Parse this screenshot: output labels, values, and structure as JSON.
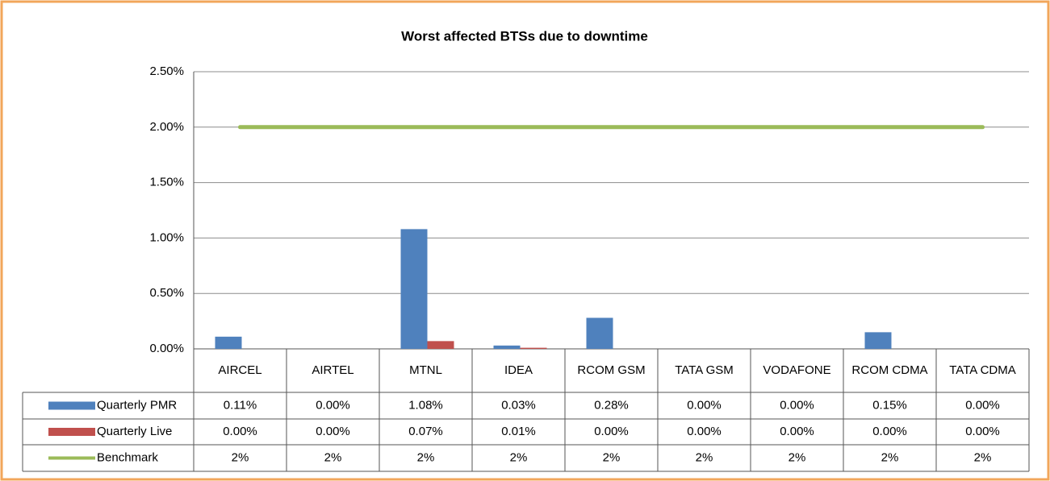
{
  "chart_data": {
    "type": "bar",
    "title": "Worst affected BTSs due to downtime",
    "categories": [
      "AIRCEL",
      "AIRTEL",
      "MTNL",
      "IDEA",
      "RCOM GSM",
      "TATA GSM",
      "VODAFONE",
      "RCOM CDMA",
      "TATA CDMA"
    ],
    "series": [
      {
        "name": "Quarterly PMR",
        "color": "#4f81bd",
        "values": [
          0.11,
          0,
          1.08,
          0.03,
          0.28,
          0,
          0,
          0.15,
          0
        ],
        "value_labels": [
          "0.11%",
          "0.00%",
          "1.08%",
          "0.03%",
          "0.28%",
          "0.00%",
          "0.00%",
          "0.15%",
          "0.00%"
        ]
      },
      {
        "name": "Quarterly Live",
        "color": "#c0504d",
        "values": [
          0,
          0,
          0.07,
          0.01,
          0,
          0,
          0,
          0,
          0
        ],
        "value_labels": [
          "0.00%",
          "0.00%",
          "0.07%",
          "0.01%",
          "0.00%",
          "0.00%",
          "0.00%",
          "0.00%",
          "0.00%"
        ]
      },
      {
        "name": "Benchmark",
        "type": "line",
        "color": "#9bbb59",
        "values": [
          2,
          2,
          2,
          2,
          2,
          2,
          2,
          2,
          2
        ],
        "value_labels": [
          "2%",
          "2%",
          "2%",
          "2%",
          "2%",
          "2%",
          "2%",
          "2%",
          "2%"
        ]
      }
    ],
    "ylim": [
      0,
      2.5
    ],
    "yticks": [
      {
        "value": 0,
        "label": "0.00%"
      },
      {
        "value": 0.5,
        "label": "0.50%"
      },
      {
        "value": 1,
        "label": "1.00%"
      },
      {
        "value": 1.5,
        "label": "1.50%"
      },
      {
        "value": 2,
        "label": "2.00%"
      },
      {
        "value": 2.5,
        "label": "2.50%"
      }
    ],
    "grid": true
  }
}
